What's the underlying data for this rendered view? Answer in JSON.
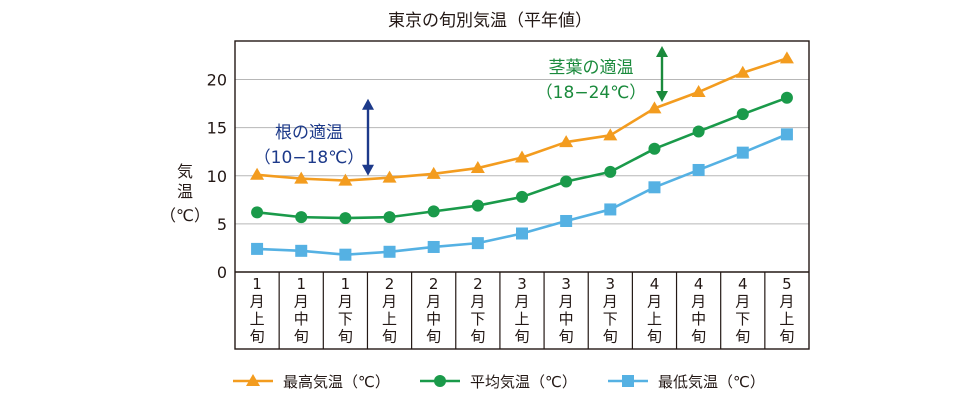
{
  "chart_data": {
    "type": "line",
    "title": "東京の旬別気温（平年値）",
    "ylabel_chars": [
      "気",
      "温"
    ],
    "yunit": "（℃）",
    "ylim": [
      0,
      24
    ],
    "yticks": [
      0,
      5,
      10,
      15,
      20
    ],
    "grid": true,
    "categories": [
      [
        "1",
        "月",
        "上",
        "旬"
      ],
      [
        "1",
        "月",
        "中",
        "旬"
      ],
      [
        "1",
        "月",
        "下",
        "旬"
      ],
      [
        "2",
        "月",
        "上",
        "旬"
      ],
      [
        "2",
        "月",
        "中",
        "旬"
      ],
      [
        "2",
        "月",
        "下",
        "旬"
      ],
      [
        "3",
        "月",
        "上",
        "旬"
      ],
      [
        "3",
        "月",
        "中",
        "旬"
      ],
      [
        "3",
        "月",
        "下",
        "旬"
      ],
      [
        "4",
        "月",
        "上",
        "旬"
      ],
      [
        "4",
        "月",
        "中",
        "旬"
      ],
      [
        "4",
        "月",
        "下",
        "旬"
      ],
      [
        "5",
        "月",
        "上",
        "旬"
      ]
    ],
    "series": [
      {
        "name": "最高気温（℃）",
        "color": "#f39c1f",
        "marker": "triangle",
        "values": [
          10.1,
          9.7,
          9.5,
          9.8,
          10.2,
          10.8,
          11.9,
          13.5,
          14.2,
          17.0,
          18.7,
          20.7,
          22.2
        ]
      },
      {
        "name": "平均気温（℃）",
        "color": "#1a9a4a",
        "marker": "circle",
        "values": [
          6.2,
          5.7,
          5.6,
          5.7,
          6.3,
          6.9,
          7.8,
          9.4,
          10.4,
          12.8,
          14.6,
          16.4,
          18.1
        ]
      },
      {
        "name": "最低気温（℃）",
        "color": "#55b1e3",
        "marker": "square",
        "values": [
          2.4,
          2.2,
          1.8,
          2.1,
          2.6,
          3.0,
          4.0,
          5.3,
          6.5,
          8.8,
          10.6,
          12.4,
          14.3
        ]
      }
    ],
    "annotations": [
      {
        "id": "root",
        "line1": "根の適温",
        "line2": "（10−18℃）",
        "range": [
          10,
          18
        ],
        "color": "#1d3a8a"
      },
      {
        "id": "leaf",
        "line1": "茎葉の適温",
        "line2": "（18−24℃）",
        "range": [
          18,
          24
        ],
        "color": "#1a8a3c"
      }
    ]
  }
}
